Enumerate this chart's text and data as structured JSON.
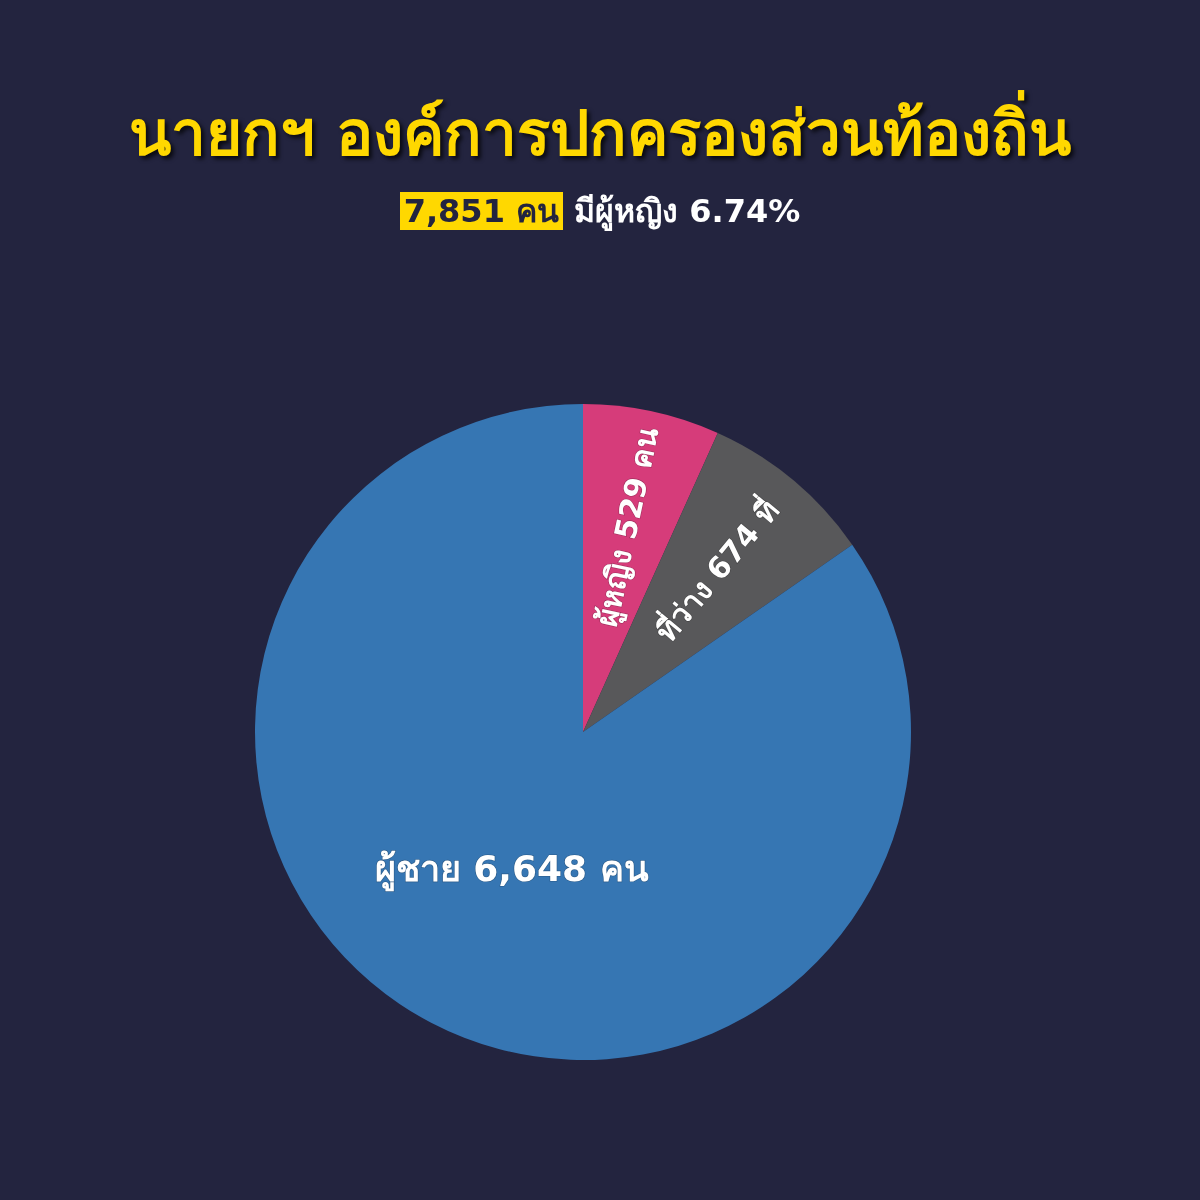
{
  "chart_data": {
    "type": "pie",
    "title": "นายกฯ องค์การปกครองส่วนท้องถิ่น",
    "subtitle": "7,851 คน มีผู้หญิง 6.74%",
    "categories": [
      "ผู้หญิง",
      "ที่ว่าง",
      "ผู้ชาย"
    ],
    "values": [
      529,
      674,
      6648
    ],
    "colors": [
      "#d63c7a",
      "#58585a",
      "#3676b3"
    ],
    "value_labels": [
      "529 คน",
      "674 ที่",
      "6,648 คน"
    ],
    "legend": false
  }
}
